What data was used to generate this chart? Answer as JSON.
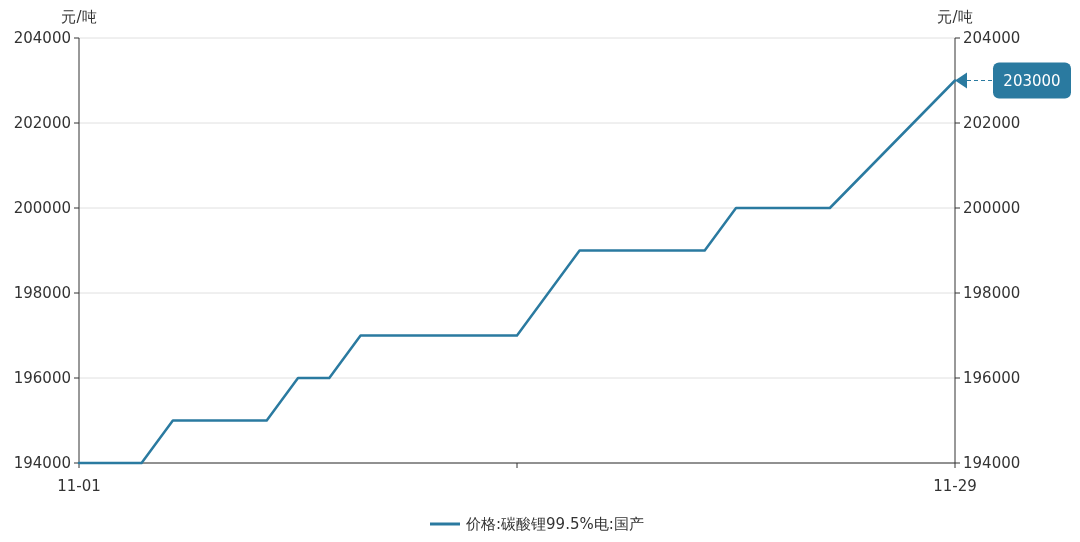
{
  "chart_data": {
    "type": "line",
    "ylabel": "元/吨",
    "y2label": "元/吨",
    "x": [
      "--11-01",
      "--11-03",
      "--11-04",
      "--11-07",
      "--11-08",
      "--11-09",
      "--11-10",
      "--11-15",
      "--11-17",
      "--11-21",
      "--11-22",
      "--11-25",
      "--11-29"
    ],
    "series": [
      {
        "name": "价格:碳酸锂99.5%电:国产",
        "color": "#2a7aa0",
        "values": [
          194000,
          194000,
          195000,
          195000,
          196000,
          196000,
          197000,
          197000,
          199000,
          199000,
          200000,
          200000,
          203000
        ]
      }
    ],
    "xlim": [
      "--11-01",
      "--11-29"
    ],
    "xticks": [
      {
        "value": "--11-01",
        "label": "11-01"
      },
      {
        "value": "--11-15",
        "label": null
      },
      {
        "value": "--11-29",
        "label": "11-29"
      }
    ],
    "ylim": [
      194000,
      204000
    ],
    "yticks": [
      194000,
      196000,
      198000,
      200000,
      202000,
      204000
    ],
    "y2lim": [
      194000,
      204000
    ],
    "y2ticks": [
      194000,
      196000,
      198000,
      200000,
      202000,
      204000
    ],
    "annotations": [
      "203000"
    ],
    "grid": "y",
    "legend": "bottom",
    "marker": "none",
    "line_style": "solid"
  }
}
